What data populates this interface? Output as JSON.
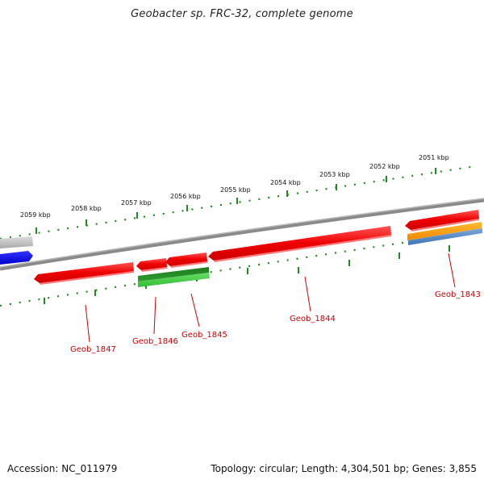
{
  "header": {
    "title": "Geobacter sp. FRC-32, complete genome"
  },
  "footer": {
    "accession": "Accession: NC_011979",
    "stats": "Topology: circular; Length: 4,304,501 bp; Genes: 3,855"
  },
  "ruler": {
    "labels": [
      "2059 kbp",
      "2058 kbp",
      "2057 kbp",
      "2056 kbp",
      "2055 kbp",
      "2054 kbp",
      "2053 kbp",
      "2052 kbp",
      "2051 kbp"
    ]
  },
  "genes": [
    {
      "name": "Geob_1847",
      "color": "#ee0000"
    },
    {
      "name": "Geob_1846",
      "color": "#ee0000"
    },
    {
      "name": "Geob_1845",
      "color": "#ee0000"
    },
    {
      "name": "Geob_1844",
      "color": "#ee0000"
    },
    {
      "name": "Geob_1843",
      "color": "#ee0000"
    }
  ],
  "colors": {
    "gene": "#ee0000",
    "rna_green": "#2ea02e",
    "backbone": "#8a8a8a",
    "blue_feature": "#0000ee",
    "gray_feature": "#b0b0b0",
    "orange_feature": "#ff9900",
    "steelblue_feature": "#4f88c6",
    "tick": "#2a8a2a",
    "label_line": "#cc0000"
  }
}
